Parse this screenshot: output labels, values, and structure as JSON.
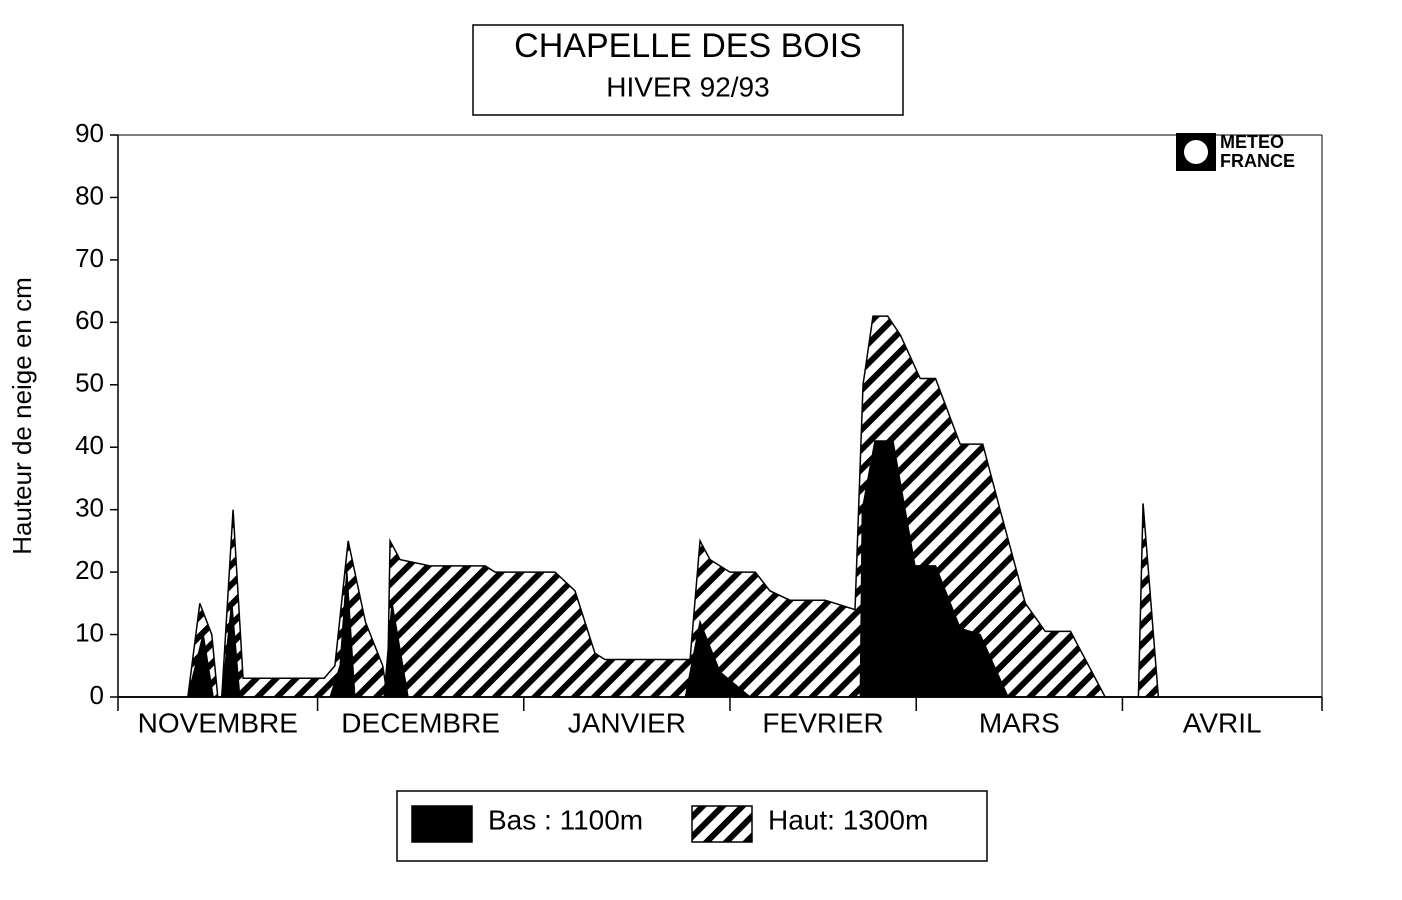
{
  "chart_data": {
    "type": "area",
    "title": "CHAPELLE DES BOIS",
    "subtitle": "HIVER 92/93",
    "ylabel": "Hauteur de neige en cm",
    "logo": [
      "METEO",
      "FRANCE"
    ],
    "categories": [
      "NOVEMBRE",
      "DECEMBRE",
      "JANVIER",
      "FEVRIER",
      "MARS",
      "AVRIL"
    ],
    "xlim": [
      0,
      181
    ],
    "xticks": [
      0,
      30,
      61,
      92,
      120,
      151,
      181
    ],
    "ylim": [
      0,
      90
    ],
    "yticks": [
      0,
      10,
      20,
      30,
      40,
      50,
      60,
      70,
      80,
      90
    ],
    "series": [
      {
        "name": "Haut: 1300m",
        "color": "#000000",
        "hatch": true,
        "x": [
          0,
          10.5,
          12.3,
          14.1,
          15,
          15.6,
          17.3,
          18.8,
          31,
          32.6,
          34.6,
          37.2,
          39.8,
          40.5,
          40.9,
          42.4,
          46.9,
          55.2,
          56.7,
          65.7,
          68.7,
          71.7,
          73.2,
          86,
          87.5,
          89,
          92,
          95.8,
          98,
          101,
          106.3,
          110.8,
          112,
          113.5,
          115.7,
          117.6,
          120.6,
          122.9,
          126.6,
          130,
          132.6,
          136.4,
          139.4,
          143.2,
          148.4,
          153.4,
          154.1,
          156.4,
          181
        ],
        "values": [
          0,
          0,
          15,
          10,
          0,
          0,
          30,
          3,
          3,
          5,
          25,
          12,
          5,
          0,
          25,
          22,
          21,
          21,
          20,
          20,
          17,
          7,
          6,
          6,
          25,
          22,
          20,
          20,
          17,
          15.5,
          15.5,
          14,
          50,
          61,
          61,
          58,
          51,
          51,
          40.5,
          40.5,
          30,
          15,
          10.5,
          10.5,
          0,
          0,
          31,
          0,
          0
        ]
      },
      {
        "name": "Bas : 1100m",
        "color": "#000000",
        "hatch": false,
        "x": [
          0,
          10.5,
          12.8,
          14.3,
          15.6,
          17.1,
          18.3,
          31.9,
          33.4,
          34.4,
          35.6,
          40,
          41.2,
          43.6,
          85.3,
          87.5,
          90.5,
          95,
          111.6,
          111.9,
          113.8,
          116.5,
          119.8,
          122.9,
          126.6,
          129.6,
          133.8,
          181
        ],
        "values": [
          0,
          0,
          10,
          0,
          0,
          15,
          0,
          0,
          5,
          20,
          0,
          0,
          15,
          0,
          0,
          12,
          4,
          0,
          0,
          30,
          41,
          41,
          21,
          21,
          11,
          10,
          0,
          0
        ]
      }
    ],
    "legend_order": [
      1,
      0
    ]
  }
}
